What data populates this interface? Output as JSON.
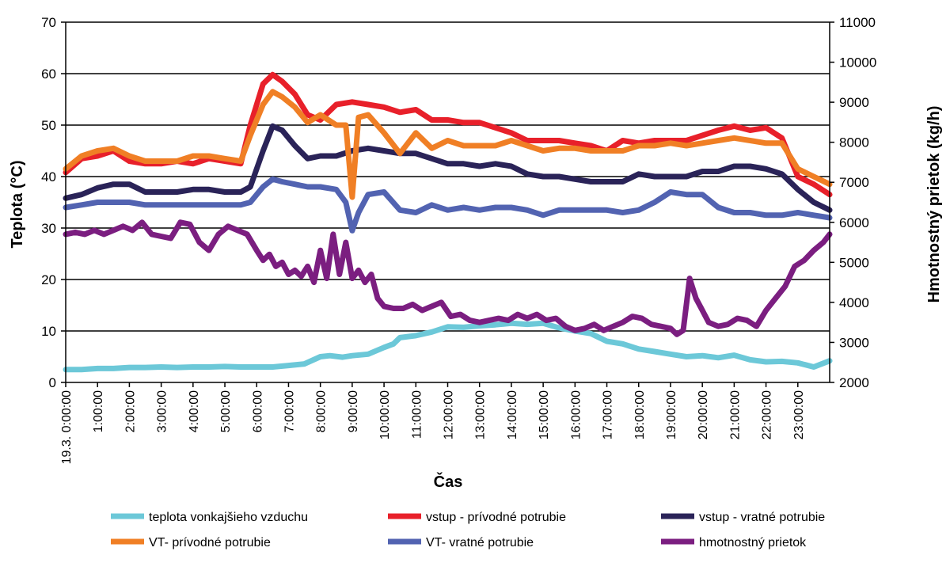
{
  "chart_data": {
    "type": "line",
    "title": "",
    "xlabel": "Čas",
    "ylabel": "Teplota (°C)",
    "y2label": "Hmotnostný prietok (kg/h)",
    "ylim": [
      0,
      70
    ],
    "y2lim": [
      2000,
      11000
    ],
    "yticks": [
      "0",
      "10",
      "20",
      "30",
      "40",
      "50",
      "60",
      "70"
    ],
    "y2ticks": [
      "2000",
      "3000",
      "4000",
      "5000",
      "6000",
      "7000",
      "8000",
      "9000",
      "10000",
      "11000"
    ],
    "xlim": [
      0,
      24
    ],
    "xticks": [
      "19.3. 0:00:00",
      "1:00:00",
      "2:00:00",
      "3:00:00",
      "4:00:00",
      "5:00:00",
      "6:00:00",
      "7:00:00",
      "8:00:00",
      "9:00:00",
      "10:00:00",
      "11:00:00",
      "12:00:00",
      "13:00:00",
      "14:00:00",
      "15:00:00",
      "16:00:00",
      "17:00:00",
      "18:00:00",
      "19:00:00",
      "20:00:00",
      "21:00:00",
      "22:00:00",
      "23:00:00"
    ],
    "grid": "horizontal",
    "legend_position": "bottom",
    "series": [
      {
        "name": "teplota vonkajšieho vzduchu",
        "color": "#6CC8D8",
        "axis": "left",
        "x": [
          0,
          0.5,
          1,
          1.5,
          2,
          2.5,
          3,
          3.5,
          4,
          4.5,
          5,
          5.5,
          6,
          6.5,
          7,
          7.5,
          8,
          8.3,
          8.7,
          9,
          9.5,
          10,
          10.3,
          10.5,
          11,
          11.5,
          12,
          12.5,
          13,
          13.5,
          14,
          14.5,
          15,
          15.5,
          16,
          16.5,
          17,
          17.5,
          18,
          18.5,
          19,
          19.5,
          20,
          20.5,
          21,
          21.5,
          22,
          22.5,
          23,
          23.5,
          24
        ],
        "values": [
          2.5,
          2.5,
          2.7,
          2.7,
          2.9,
          2.9,
          3,
          2.9,
          3,
          3,
          3.1,
          3,
          3,
          3,
          3.3,
          3.6,
          5,
          5.2,
          4.9,
          5.2,
          5.5,
          6.8,
          7.5,
          8.7,
          9.1,
          9.8,
          10.8,
          10.7,
          11,
          11.2,
          11.5,
          11.3,
          11.5,
          10.6,
          10,
          9.5,
          8,
          7.5,
          6.5,
          6,
          5.5,
          5,
          5.2,
          4.8,
          5.3,
          4.4,
          4,
          4.1,
          3.8,
          3,
          4.2
        ]
      },
      {
        "name": "vstup - prívodné potrubie",
        "color": "#E8202A",
        "axis": "left",
        "x": [
          0,
          0.5,
          1,
          1.5,
          2,
          2.5,
          3,
          3.5,
          4,
          4.5,
          5,
          5.5,
          5.8,
          6.2,
          6.5,
          6.8,
          7.2,
          7.6,
          8,
          8.5,
          9,
          9.5,
          10,
          10.5,
          11,
          11.5,
          12,
          12.5,
          13,
          13.5,
          14,
          14.5,
          15,
          15.5,
          16,
          16.5,
          17,
          17.5,
          18,
          18.5,
          19,
          19.5,
          20,
          20.5,
          21,
          21.5,
          22,
          22.5,
          23,
          23.5,
          24
        ],
        "values": [
          40.8,
          43.5,
          44,
          45,
          43,
          42.5,
          42.5,
          43,
          42.5,
          43.5,
          43,
          42.5,
          50,
          58,
          59.8,
          58.5,
          56,
          52,
          51,
          54,
          54.5,
          54,
          53.5,
          52.5,
          53,
          51,
          51,
          50.5,
          50.5,
          49.5,
          48.5,
          47,
          47,
          47,
          46.5,
          46,
          45,
          47,
          46.5,
          47,
          47,
          47,
          48,
          49,
          49.8,
          49,
          49.5,
          47.5,
          40,
          38.5,
          36.5
        ]
      },
      {
        "name": "vstup - vratné potrubie",
        "color": "#2A2358",
        "axis": "left",
        "x": [
          0,
          0.5,
          1,
          1.5,
          2,
          2.5,
          3,
          3.5,
          4,
          4.5,
          5,
          5.5,
          5.8,
          6.2,
          6.5,
          6.8,
          7.2,
          7.6,
          8,
          8.5,
          9,
          9.5,
          10,
          10.5,
          11,
          11.5,
          12,
          12.5,
          13,
          13.5,
          14,
          14.5,
          15,
          15.5,
          16,
          16.5,
          17,
          17.5,
          18,
          18.5,
          19,
          19.5,
          20,
          20.5,
          21,
          21.5,
          22,
          22.5,
          23,
          23.5,
          24
        ],
        "values": [
          35.8,
          36.5,
          37.8,
          38.5,
          38.5,
          37,
          37,
          37,
          37.5,
          37.5,
          37,
          37,
          38,
          45,
          49.8,
          49,
          46,
          43.5,
          44,
          44,
          45,
          45.5,
          45,
          44.5,
          44.5,
          43.5,
          42.5,
          42.5,
          42,
          42.5,
          42,
          40.5,
          40,
          40,
          39.5,
          39,
          39,
          39,
          40.5,
          40,
          40,
          40,
          41,
          41,
          42,
          42,
          41.5,
          40.5,
          37.5,
          35,
          33.5
        ]
      },
      {
        "name": "VT- prívodné potrubie",
        "color": "#F07F25",
        "axis": "left",
        "x": [
          0,
          0.5,
          1,
          1.5,
          2,
          2.5,
          3,
          3.5,
          4,
          4.5,
          5,
          5.5,
          5.8,
          6.2,
          6.5,
          6.8,
          7.2,
          7.6,
          8,
          8.5,
          8.8,
          9,
          9.2,
          9.5,
          10,
          10.5,
          11,
          11.5,
          12,
          12.5,
          13,
          13.5,
          14,
          14.5,
          15,
          15.5,
          16,
          16.5,
          17,
          17.5,
          18,
          18.5,
          19,
          19.5,
          20,
          20.5,
          21,
          21.5,
          22,
          22.5,
          23,
          23.5,
          24
        ],
        "values": [
          41.5,
          44,
          45,
          45.5,
          44,
          43,
          43,
          43,
          44,
          44,
          43.5,
          43,
          48,
          54,
          56.5,
          55.5,
          53.5,
          50.5,
          52,
          50,
          50,
          36,
          51.5,
          52,
          48.5,
          44.5,
          48.5,
          45.5,
          47,
          46,
          46,
          46,
          47,
          46,
          45,
          45.5,
          45.5,
          45,
          45,
          45,
          46,
          46,
          46.5,
          46,
          46.5,
          47,
          47.5,
          47,
          46.5,
          46.5,
          41.5,
          40,
          38.5
        ]
      },
      {
        "name": "VT- vratné potrubie",
        "color": "#5263B1",
        "axis": "left",
        "x": [
          0,
          0.5,
          1,
          1.5,
          2,
          2.5,
          3,
          3.5,
          4,
          4.5,
          5,
          5.5,
          5.8,
          6.2,
          6.5,
          6.8,
          7.2,
          7.6,
          8,
          8.5,
          8.8,
          9,
          9.2,
          9.5,
          10,
          10.5,
          11,
          11.5,
          12,
          12.5,
          13,
          13.5,
          14,
          14.5,
          15,
          15.5,
          16,
          16.5,
          17,
          17.5,
          18,
          18.5,
          19,
          19.5,
          20,
          20.5,
          21,
          21.5,
          22,
          22.5,
          23,
          23.5,
          24
        ],
        "values": [
          34,
          34.5,
          35,
          35,
          35,
          34.5,
          34.5,
          34.5,
          34.5,
          34.5,
          34.5,
          34.5,
          35,
          38,
          39.5,
          39,
          38.5,
          38,
          38,
          37.5,
          35,
          29.5,
          33,
          36.5,
          37,
          33.5,
          33,
          34.5,
          33.5,
          34,
          33.5,
          34,
          34,
          33.5,
          32.5,
          33.5,
          33.5,
          33.5,
          33.5,
          33,
          33.5,
          35,
          37,
          36.5,
          36.5,
          34,
          33,
          33,
          32.5,
          32.5,
          33,
          32.5,
          32
        ]
      },
      {
        "name": "hmotnostný prietok",
        "color": "#7B1E80",
        "axis": "right",
        "x": [
          0,
          0.3,
          0.6,
          0.9,
          1.2,
          1.5,
          1.8,
          2.1,
          2.4,
          2.7,
          3,
          3.3,
          3.6,
          3.9,
          4.2,
          4.5,
          4.8,
          5.1,
          5.4,
          5.7,
          6,
          6.2,
          6.4,
          6.6,
          6.8,
          7,
          7.2,
          7.4,
          7.6,
          7.8,
          8,
          8.2,
          8.4,
          8.6,
          8.8,
          9,
          9.2,
          9.4,
          9.6,
          9.8,
          10,
          10.3,
          10.6,
          10.9,
          11.2,
          11.5,
          11.8,
          12.1,
          12.4,
          12.7,
          13,
          13.3,
          13.6,
          13.9,
          14.2,
          14.5,
          14.8,
          15.1,
          15.4,
          15.7,
          16,
          16.3,
          16.6,
          16.9,
          17.2,
          17.5,
          17.8,
          18.1,
          18.4,
          18.7,
          19,
          19.2,
          19.4,
          19.6,
          19.8,
          20,
          20.2,
          20.5,
          20.8,
          21.1,
          21.4,
          21.7,
          22,
          22.3,
          22.6,
          22.9,
          23.2,
          23.5,
          23.8,
          24
        ],
        "values": [
          5700,
          5750,
          5700,
          5800,
          5700,
          5800,
          5900,
          5800,
          6000,
          5700,
          5650,
          5600,
          6000,
          5950,
          5500,
          5300,
          5700,
          5900,
          5800,
          5700,
          5300,
          5050,
          5200,
          4900,
          5000,
          4700,
          4800,
          4650,
          4900,
          4500,
          5300,
          4600,
          5700,
          4700,
          5500,
          4600,
          4800,
          4500,
          4700,
          4100,
          3900,
          3850,
          3850,
          3950,
          3800,
          3900,
          4000,
          3650,
          3700,
          3550,
          3500,
          3550,
          3600,
          3550,
          3700,
          3600,
          3700,
          3550,
          3600,
          3400,
          3300,
          3350,
          3450,
          3300,
          3400,
          3500,
          3650,
          3600,
          3450,
          3400,
          3350,
          3200,
          3300,
          4600,
          4100,
          3800,
          3500,
          3400,
          3450,
          3600,
          3550,
          3400,
          3800,
          4100,
          4400,
          4900,
          5050,
          5300,
          5500,
          5700
        ]
      }
    ]
  }
}
